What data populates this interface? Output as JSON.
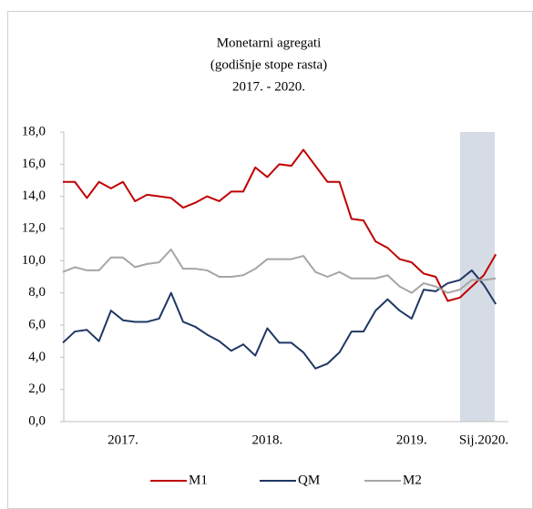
{
  "chart_data": {
    "type": "line",
    "title": [
      "Monetarni  agregati",
      "(godišnje stope rasta)",
      "2017. - 2020."
    ],
    "categories": [
      null,
      null,
      null,
      null,
      null,
      "2017.",
      null,
      null,
      null,
      null,
      null,
      null,
      null,
      null,
      null,
      null,
      null,
      "2018.",
      null,
      null,
      null,
      null,
      null,
      null,
      null,
      null,
      null,
      null,
      null,
      "2019.",
      null,
      null,
      null,
      null,
      null,
      "Sij.2020.",
      null
    ],
    "series": [
      {
        "name": "M1",
        "color": "#c00000",
        "values": [
          14.9,
          14.9,
          13.9,
          14.9,
          14.5,
          14.9,
          13.7,
          14.1,
          14.0,
          13.9,
          13.3,
          13.6,
          14.0,
          13.7,
          14.3,
          14.3,
          15.8,
          15.2,
          16.0,
          15.9,
          16.9,
          15.9,
          14.9,
          14.9,
          12.6,
          12.5,
          11.2,
          10.8,
          10.1,
          9.9,
          9.2,
          9.0,
          7.5,
          7.7,
          8.4,
          9.1,
          10.4
        ]
      },
      {
        "name": "QM",
        "color": "#1f3864",
        "values": [
          4.9,
          5.6,
          5.7,
          5.0,
          6.9,
          6.3,
          6.2,
          6.2,
          6.4,
          8.0,
          6.2,
          5.9,
          5.4,
          5.0,
          4.4,
          4.8,
          4.1,
          5.8,
          4.9,
          4.9,
          4.3,
          3.3,
          3.6,
          4.3,
          5.6,
          5.6,
          6.9,
          7.6,
          6.9,
          6.4,
          8.2,
          8.1,
          8.6,
          8.8,
          9.4,
          8.5,
          7.3
        ]
      },
      {
        "name": "M2",
        "color": "#a6a6a6",
        "values": [
          9.3,
          9.6,
          9.4,
          9.4,
          10.2,
          10.2,
          9.6,
          9.8,
          9.9,
          10.7,
          9.5,
          9.5,
          9.4,
          9.0,
          9.0,
          9.1,
          9.5,
          10.1,
          10.1,
          10.1,
          10.3,
          9.3,
          9.0,
          9.3,
          8.9,
          8.9,
          8.9,
          9.1,
          8.4,
          8.0,
          8.6,
          8.4,
          8.0,
          8.2,
          8.8,
          8.8,
          8.9
        ]
      }
    ],
    "ylim": [
      0,
      18
    ],
    "yticks": [
      {
        "value": 0,
        "label": "0,0"
      },
      {
        "value": 2,
        "label": "2,0"
      },
      {
        "value": 4,
        "label": "4,0"
      },
      {
        "value": 6,
        "label": "6,0"
      },
      {
        "value": 8,
        "label": "8,0"
      },
      {
        "value": 10,
        "label": "10,0"
      },
      {
        "value": 12,
        "label": "12,0"
      },
      {
        "value": 14,
        "label": "14,0"
      },
      {
        "value": 16,
        "label": "16,0"
      },
      {
        "value": 18,
        "label": "18,0"
      }
    ],
    "legend": "bottom"
  }
}
